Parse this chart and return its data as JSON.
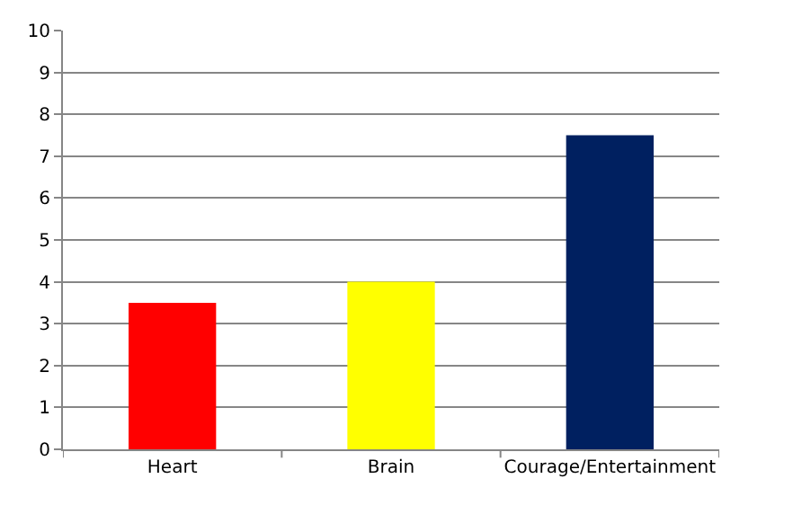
{
  "chart_data": {
    "type": "bar",
    "categories": [
      "Heart",
      "Brain",
      "Courage/Entertainment"
    ],
    "values": [
      3.5,
      4,
      7.5
    ],
    "colors": [
      "#ff0000",
      "#ffff00",
      "#002060"
    ],
    "ylim": [
      0,
      10
    ],
    "yticks": [
      0,
      1,
      2,
      3,
      4,
      5,
      6,
      7,
      8,
      9,
      10
    ],
    "grid": "y"
  }
}
